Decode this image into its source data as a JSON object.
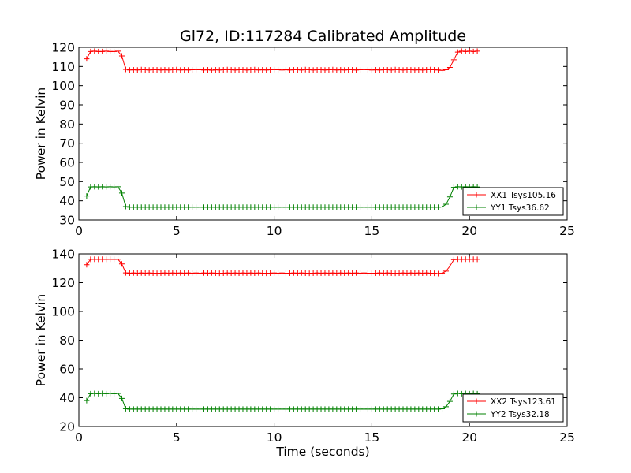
{
  "chart_data": [
    {
      "type": "line",
      "title": "Gl72, ID:117284 Calibrated Amplitude",
      "xlabel": "",
      "ylabel": "Power in Kelvin",
      "xlim": [
        0,
        25
      ],
      "ylim": [
        30,
        120
      ],
      "xticks": [
        "0",
        "5",
        "10",
        "15",
        "20",
        "25"
      ],
      "yticks": [
        "30",
        "40",
        "50",
        "60",
        "70",
        "80",
        "90",
        "100",
        "110",
        "120"
      ],
      "legend_position": "lower-right",
      "series": [
        {
          "name": "XX1 Tsys105.16",
          "color": "#ff0000",
          "marker": "plus",
          "x": [
            0.4,
            0.6,
            0.8,
            1.0,
            1.2,
            1.4,
            1.6,
            1.8,
            2.0,
            2.2,
            2.4,
            2.6,
            2.8,
            3.0,
            3.2,
            3.4,
            3.6,
            3.8,
            4.0,
            4.2,
            4.4,
            4.6,
            4.8,
            5.0,
            5.2,
            5.4,
            5.6,
            5.8,
            6.0,
            6.2,
            6.4,
            6.6,
            6.8,
            7.0,
            7.2,
            7.4,
            7.6,
            7.8,
            8.0,
            8.2,
            8.4,
            8.6,
            8.8,
            9.0,
            9.2,
            9.4,
            9.6,
            9.8,
            10.0,
            10.2,
            10.4,
            10.6,
            10.8,
            11.0,
            11.2,
            11.4,
            11.6,
            11.8,
            12.0,
            12.2,
            12.4,
            12.6,
            12.8,
            13.0,
            13.2,
            13.4,
            13.6,
            13.8,
            14.0,
            14.2,
            14.4,
            14.6,
            14.8,
            15.0,
            15.2,
            15.4,
            15.6,
            15.8,
            16.0,
            16.2,
            16.4,
            16.6,
            16.8,
            17.0,
            17.2,
            17.4,
            17.6,
            17.8,
            18.0,
            18.2,
            18.4,
            18.6,
            18.8,
            19.0,
            19.2,
            19.4,
            19.6,
            19.8,
            20.0,
            20.2,
            20.4
          ],
          "y": [
            114,
            117.8,
            118,
            117.8,
            117.8,
            118,
            117.8,
            117.8,
            118,
            115.5,
            108.5,
            108.2,
            108.3,
            108.2,
            108.4,
            108.3,
            108.2,
            108.3,
            108.3,
            108.2,
            108.3,
            108.2,
            108.3,
            108.4,
            108.2,
            108.3,
            108.2,
            108.3,
            108.4,
            108.3,
            108.2,
            108.3,
            108.1,
            108.3,
            108.2,
            108.3,
            108.4,
            108.3,
            108.2,
            108.3,
            108.3,
            108.2,
            108.3,
            108.4,
            108.2,
            108.3,
            108.2,
            108.3,
            108.4,
            108.3,
            108.2,
            108.3,
            108.2,
            108.3,
            108.3,
            108.2,
            108.4,
            108.3,
            108.2,
            108.3,
            108.3,
            108.2,
            108.3,
            108.4,
            108.2,
            108.3,
            108.2,
            108.3,
            108.3,
            108.2,
            108.3,
            108.4,
            108.3,
            108.2,
            108.3,
            108.2,
            108.3,
            108.3,
            108.2,
            108.4,
            108.3,
            108.2,
            108.3,
            108.3,
            108.2,
            108.3,
            108.2,
            108.3,
            108.4,
            108.3,
            108.2,
            108.0,
            108.3,
            109.5,
            113.5,
            117.5,
            118,
            117.8,
            118,
            117.8,
            118
          ]
        },
        {
          "name": "YY1 Tsys36.62",
          "color": "#008000",
          "marker": "plus",
          "x": [
            0.4,
            0.6,
            0.8,
            1.0,
            1.2,
            1.4,
            1.6,
            1.8,
            2.0,
            2.2,
            2.4,
            2.6,
            2.8,
            3.0,
            3.2,
            3.4,
            3.6,
            3.8,
            4.0,
            4.2,
            4.4,
            4.6,
            4.8,
            5.0,
            5.2,
            5.4,
            5.6,
            5.8,
            6.0,
            6.2,
            6.4,
            6.6,
            6.8,
            7.0,
            7.2,
            7.4,
            7.6,
            7.8,
            8.0,
            8.2,
            8.4,
            8.6,
            8.8,
            9.0,
            9.2,
            9.4,
            9.6,
            9.8,
            10.0,
            10.2,
            10.4,
            10.6,
            10.8,
            11.0,
            11.2,
            11.4,
            11.6,
            11.8,
            12.0,
            12.2,
            12.4,
            12.6,
            12.8,
            13.0,
            13.2,
            13.4,
            13.6,
            13.8,
            14.0,
            14.2,
            14.4,
            14.6,
            14.8,
            15.0,
            15.2,
            15.4,
            15.6,
            15.8,
            16.0,
            16.2,
            16.4,
            16.6,
            16.8,
            17.0,
            17.2,
            17.4,
            17.6,
            17.8,
            18.0,
            18.2,
            18.4,
            18.6,
            18.8,
            19.0,
            19.2,
            19.4,
            19.6,
            19.8,
            20.0,
            20.2,
            20.4
          ],
          "y": [
            42.5,
            47.2,
            47.3,
            47.2,
            47.3,
            47.2,
            47.3,
            47.2,
            47.3,
            44.0,
            37.0,
            36.7,
            36.7,
            36.7,
            36.7,
            36.7,
            36.7,
            36.7,
            36.7,
            36.7,
            36.7,
            36.7,
            36.7,
            36.7,
            36.7,
            36.7,
            36.7,
            36.7,
            36.7,
            36.7,
            36.7,
            36.7,
            36.7,
            36.7,
            36.7,
            36.7,
            36.7,
            36.7,
            36.7,
            36.7,
            36.7,
            36.7,
            36.7,
            36.7,
            36.7,
            36.7,
            36.7,
            36.7,
            36.7,
            36.7,
            36.7,
            36.7,
            36.7,
            36.7,
            36.7,
            36.7,
            36.7,
            36.7,
            36.7,
            36.7,
            36.7,
            36.7,
            36.7,
            36.7,
            36.7,
            36.7,
            36.7,
            36.7,
            36.7,
            36.7,
            36.7,
            36.7,
            36.7,
            36.7,
            36.7,
            36.7,
            36.7,
            36.7,
            36.7,
            36.7,
            36.7,
            36.7,
            36.7,
            36.7,
            36.7,
            36.7,
            36.7,
            36.7,
            36.7,
            36.7,
            36.7,
            36.8,
            38.2,
            42.0,
            47.0,
            47.3,
            47.2,
            47.3,
            47.2,
            47.3,
            47.2
          ]
        }
      ]
    },
    {
      "type": "line",
      "title": "",
      "xlabel": "Time (seconds)",
      "ylabel": "Power in Kelvin",
      "xlim": [
        0,
        25
      ],
      "ylim": [
        20,
        140
      ],
      "xticks": [
        "0",
        "5",
        "10",
        "15",
        "20",
        "25"
      ],
      "yticks": [
        "20",
        "40",
        "60",
        "80",
        "100",
        "120",
        "140"
      ],
      "legend_position": "lower-right",
      "series": [
        {
          "name": "XX2 Tsys123.61",
          "color": "#ff0000",
          "marker": "plus",
          "x": [
            0.4,
            0.6,
            0.8,
            1.0,
            1.2,
            1.4,
            1.6,
            1.8,
            2.0,
            2.2,
            2.4,
            2.6,
            2.8,
            3.0,
            3.2,
            3.4,
            3.6,
            3.8,
            4.0,
            4.2,
            4.4,
            4.6,
            4.8,
            5.0,
            5.2,
            5.4,
            5.6,
            5.8,
            6.0,
            6.2,
            6.4,
            6.6,
            6.8,
            7.0,
            7.2,
            7.4,
            7.6,
            7.8,
            8.0,
            8.2,
            8.4,
            8.6,
            8.8,
            9.0,
            9.2,
            9.4,
            9.6,
            9.8,
            10.0,
            10.2,
            10.4,
            10.6,
            10.8,
            11.0,
            11.2,
            11.4,
            11.6,
            11.8,
            12.0,
            12.2,
            12.4,
            12.6,
            12.8,
            13.0,
            13.2,
            13.4,
            13.6,
            13.8,
            14.0,
            14.2,
            14.4,
            14.6,
            14.8,
            15.0,
            15.2,
            15.4,
            15.6,
            15.8,
            16.0,
            16.2,
            16.4,
            16.6,
            16.8,
            17.0,
            17.2,
            17.4,
            17.6,
            17.8,
            18.0,
            18.2,
            18.4,
            18.6,
            18.8,
            19.0,
            19.2,
            19.4,
            19.6,
            19.8,
            20.0,
            20.2,
            20.4
          ],
          "y": [
            132.5,
            136.2,
            136.3,
            136.2,
            136.3,
            136.2,
            136.3,
            136.2,
            136.3,
            133.0,
            126.8,
            126.6,
            126.7,
            126.6,
            126.7,
            126.6,
            126.7,
            126.6,
            126.5,
            126.6,
            126.7,
            126.6,
            126.7,
            126.6,
            126.7,
            126.6,
            126.7,
            126.6,
            126.7,
            126.6,
            126.7,
            126.6,
            126.7,
            126.6,
            126.5,
            126.6,
            126.7,
            126.6,
            126.7,
            126.6,
            126.7,
            126.6,
            126.7,
            126.6,
            126.7,
            126.6,
            126.5,
            126.6,
            126.7,
            126.6,
            126.7,
            126.5,
            126.6,
            126.7,
            126.6,
            126.7,
            126.6,
            126.5,
            126.6,
            126.7,
            126.6,
            126.7,
            126.6,
            126.7,
            126.6,
            126.7,
            126.6,
            126.7,
            126.6,
            126.7,
            126.6,
            126.7,
            126.6,
            126.5,
            126.6,
            126.7,
            126.6,
            126.7,
            126.6,
            126.5,
            126.6,
            126.7,
            126.6,
            126.7,
            126.6,
            126.7,
            126.6,
            126.7,
            126.6,
            126.5,
            126.3,
            126.5,
            128.0,
            131.5,
            136.0,
            136.3,
            136.2,
            136.3,
            136.2,
            136.3,
            136.2
          ]
        },
        {
          "name": "YY2 Tsys32.18",
          "color": "#008000",
          "marker": "plus",
          "x": [
            0.4,
            0.6,
            0.8,
            1.0,
            1.2,
            1.4,
            1.6,
            1.8,
            2.0,
            2.2,
            2.4,
            2.6,
            2.8,
            3.0,
            3.2,
            3.4,
            3.6,
            3.8,
            4.0,
            4.2,
            4.4,
            4.6,
            4.8,
            5.0,
            5.2,
            5.4,
            5.6,
            5.8,
            6.0,
            6.2,
            6.4,
            6.6,
            6.8,
            7.0,
            7.2,
            7.4,
            7.6,
            7.8,
            8.0,
            8.2,
            8.4,
            8.6,
            8.8,
            9.0,
            9.2,
            9.4,
            9.6,
            9.8,
            10.0,
            10.2,
            10.4,
            10.6,
            10.8,
            11.0,
            11.2,
            11.4,
            11.6,
            11.8,
            12.0,
            12.2,
            12.4,
            12.6,
            12.8,
            13.0,
            13.2,
            13.4,
            13.6,
            13.8,
            14.0,
            14.2,
            14.4,
            14.6,
            14.8,
            15.0,
            15.2,
            15.4,
            15.6,
            15.8,
            16.0,
            16.2,
            16.4,
            16.6,
            16.8,
            17.0,
            17.2,
            17.4,
            17.6,
            17.8,
            18.0,
            18.2,
            18.4,
            18.6,
            18.8,
            19.0,
            19.2,
            19.4,
            19.6,
            19.8,
            20.0,
            20.2,
            20.4
          ],
          "y": [
            38.0,
            42.8,
            43.0,
            42.8,
            43.0,
            42.8,
            43.0,
            42.8,
            43.0,
            39.5,
            32.4,
            32.1,
            32.1,
            32.1,
            32.1,
            32.1,
            32.1,
            32.1,
            32.1,
            32.1,
            32.1,
            32.1,
            32.1,
            32.1,
            32.1,
            32.1,
            32.1,
            32.1,
            32.1,
            32.1,
            32.1,
            32.1,
            32.1,
            32.1,
            32.1,
            32.1,
            32.1,
            32.1,
            32.1,
            32.1,
            32.1,
            32.1,
            32.1,
            32.1,
            32.1,
            32.1,
            32.1,
            32.1,
            32.1,
            32.1,
            32.1,
            32.1,
            32.1,
            32.1,
            32.1,
            32.1,
            32.1,
            32.1,
            32.1,
            32.1,
            32.1,
            32.1,
            32.1,
            32.1,
            32.1,
            32.1,
            32.1,
            32.1,
            32.1,
            32.1,
            32.1,
            32.1,
            32.1,
            32.1,
            32.1,
            32.1,
            32.1,
            32.1,
            32.1,
            32.1,
            32.1,
            32.1,
            32.1,
            32.1,
            32.1,
            32.1,
            32.1,
            32.1,
            32.1,
            32.1,
            32.1,
            32.3,
            33.8,
            37.5,
            42.6,
            43.0,
            42.8,
            43.0,
            42.8,
            43.0,
            42.8
          ]
        }
      ]
    }
  ]
}
